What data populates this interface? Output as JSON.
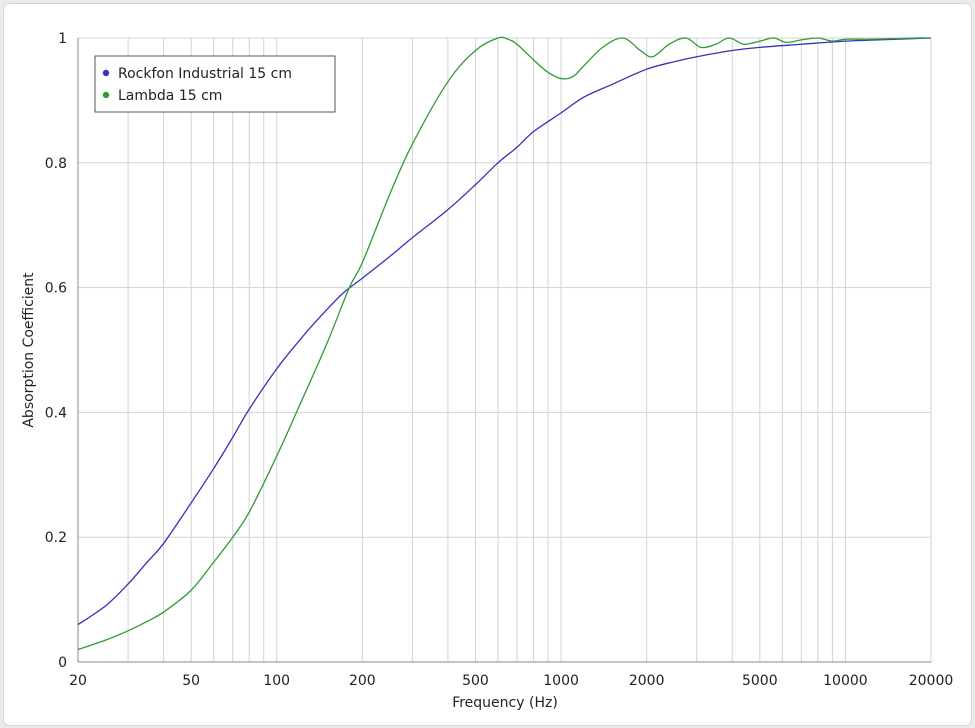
{
  "chart_data": {
    "type": "line",
    "xscale": "log",
    "xlabel": "Frequency (Hz)",
    "ylabel": "Absorption Coefficient",
    "xlim": [
      20,
      20000
    ],
    "ylim": [
      0,
      1
    ],
    "grid": true,
    "legend_position": "top-left",
    "x_ticks": [
      20,
      50,
      100,
      200,
      500,
      1000,
      2000,
      5000,
      10000,
      20000
    ],
    "x_tick_labels": [
      "20",
      "50",
      "100",
      "200",
      "500",
      "1000",
      "2000",
      "5000",
      "10000",
      "20000"
    ],
    "y_ticks": [
      0,
      0.2,
      0.4,
      0.6,
      0.8,
      1
    ],
    "y_tick_labels": [
      "0",
      "0.2",
      "0.4",
      "0.6",
      "0.8",
      "1"
    ],
    "series": [
      {
        "name": "Rockfon Industrial 15 cm",
        "color": "#3333bb",
        "x": [
          20,
          25,
          30,
          35,
          40,
          50,
          60,
          70,
          80,
          100,
          120,
          140,
          170,
          200,
          250,
          300,
          400,
          500,
          600,
          700,
          800,
          1000,
          1200,
          1500,
          2000,
          2500,
          3000,
          4000,
          5000,
          7000,
          10000,
          15000,
          20000
        ],
        "y": [
          0.06,
          0.09,
          0.125,
          0.16,
          0.19,
          0.255,
          0.31,
          0.36,
          0.405,
          0.47,
          0.515,
          0.55,
          0.59,
          0.615,
          0.65,
          0.68,
          0.725,
          0.765,
          0.8,
          0.825,
          0.85,
          0.88,
          0.905,
          0.925,
          0.95,
          0.962,
          0.97,
          0.98,
          0.985,
          0.99,
          0.995,
          0.998,
          1.0
        ]
      },
      {
        "name": "Lambda 15 cm",
        "color": "#339933",
        "x": [
          20,
          25,
          30,
          35,
          40,
          50,
          60,
          70,
          80,
          100,
          120,
          150,
          180,
          200,
          250,
          300,
          400,
          500,
          600,
          650,
          700,
          800,
          900,
          1000,
          1100,
          1200,
          1400,
          1650,
          1900,
          2100,
          2400,
          2750,
          3100,
          3500,
          3900,
          4400,
          5000,
          5600,
          6200,
          7000,
          8000,
          9000,
          10000,
          12000,
          15000,
          18000,
          20000
        ],
        "y": [
          0.02,
          0.035,
          0.05,
          0.065,
          0.08,
          0.115,
          0.16,
          0.2,
          0.24,
          0.33,
          0.41,
          0.51,
          0.6,
          0.64,
          0.75,
          0.83,
          0.93,
          0.98,
          1.0,
          0.998,
          0.99,
          0.965,
          0.945,
          0.935,
          0.938,
          0.955,
          0.985,
          1.0,
          0.98,
          0.97,
          0.99,
          1.0,
          0.985,
          0.99,
          1.0,
          0.99,
          0.995,
          1.0,
          0.993,
          0.997,
          1.0,
          0.995,
          0.998,
          0.998,
          0.999,
          1.0,
          1.0
        ]
      }
    ]
  }
}
